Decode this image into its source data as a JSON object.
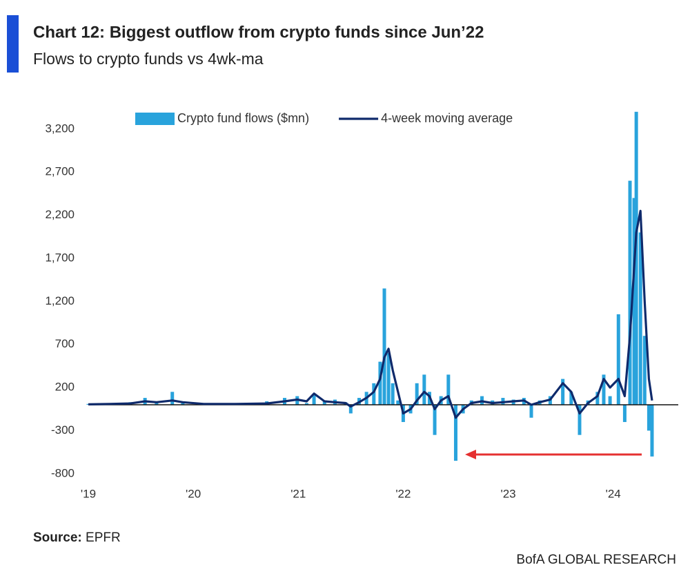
{
  "chart_data": {
    "type": "combo",
    "title": "Chart 12: Biggest outflow from crypto funds since Jun’22",
    "subtitle": "Flows to crypto funds vs 4wk-ma",
    "source_label": "Source:",
    "source": "EPFR",
    "brand": "BofA GLOBAL RESEARCH",
    "legend": "top",
    "x": [
      2019.0,
      2019.2,
      2019.4,
      2019.54,
      2019.65,
      2019.8,
      2019.9,
      2020.1,
      2020.4,
      2020.7,
      2020.87,
      2020.99,
      2021.08,
      2021.15,
      2021.25,
      2021.35,
      2021.45,
      2021.5,
      2021.58,
      2021.65,
      2021.72,
      2021.78,
      2021.82,
      2021.86,
      2021.9,
      2021.95,
      2022.0,
      2022.07,
      2022.13,
      2022.2,
      2022.25,
      2022.3,
      2022.36,
      2022.43,
      2022.5,
      2022.57,
      2022.65,
      2022.75,
      2022.85,
      2022.95,
      2023.05,
      2023.15,
      2023.22,
      2023.3,
      2023.4,
      2023.52,
      2023.6,
      2023.68,
      2023.76,
      2023.85,
      2023.91,
      2023.97,
      2024.05,
      2024.11,
      2024.16,
      2024.2,
      2024.22,
      2024.26,
      2024.3,
      2024.34,
      2024.37
    ],
    "series": [
      {
        "name": "Crypto fund flows ($mn)",
        "type": "bar",
        "color": "#29a3dc",
        "values": [
          10,
          20,
          30,
          80,
          30,
          150,
          20,
          10,
          20,
          40,
          80,
          100,
          20,
          120,
          40,
          60,
          30,
          -100,
          80,
          150,
          250,
          500,
          1350,
          600,
          250,
          50,
          -200,
          -100,
          250,
          350,
          150,
          -350,
          100,
          350,
          -650,
          -100,
          50,
          100,
          50,
          80,
          60,
          80,
          -150,
          50,
          100,
          300,
          150,
          -350,
          50,
          150,
          350,
          100,
          1050,
          -200,
          2600,
          2400,
          3400,
          2000,
          800,
          -300,
          -600
        ]
      },
      {
        "name": "4-week moving average",
        "type": "line",
        "color": "#0f2a6b",
        "values": [
          5,
          10,
          15,
          40,
          30,
          50,
          30,
          10,
          10,
          15,
          40,
          60,
          40,
          130,
          40,
          30,
          20,
          -20,
          30,
          80,
          150,
          300,
          550,
          650,
          400,
          150,
          -100,
          -50,
          50,
          150,
          100,
          -50,
          50,
          100,
          -150,
          -50,
          20,
          40,
          20,
          30,
          40,
          50,
          0,
          30,
          60,
          250,
          150,
          -100,
          20,
          100,
          300,
          200,
          300,
          100,
          800,
          1600,
          2000,
          2250,
          1200,
          300,
          50
        ]
      }
    ],
    "xlim": [
      2019,
      2024.62
    ],
    "xticks": [
      {
        "value": 2019,
        "label": "'19"
      },
      {
        "value": 2020,
        "label": "'20"
      },
      {
        "value": 2021,
        "label": "'21"
      },
      {
        "value": 2022,
        "label": "'22"
      },
      {
        "value": 2023,
        "label": "'23"
      },
      {
        "value": 2024,
        "label": "'24"
      }
    ],
    "ylim": [
      -900,
      3450
    ],
    "yticks": [
      -800,
      -300,
      200,
      700,
      {
        "value": 1200,
        "label": "1,200"
      },
      {
        "value": 1700,
        "label": "1,700"
      },
      {
        "value": 2200,
        "label": "2,200"
      },
      {
        "value": 2700,
        "label": "2,700"
      },
      {
        "value": 3200,
        "label": "3,200"
      }
    ],
    "grid": false
  }
}
